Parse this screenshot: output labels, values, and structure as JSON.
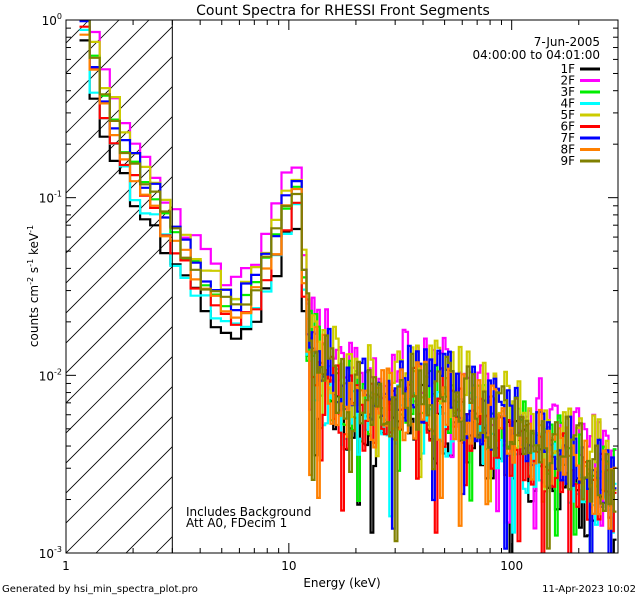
{
  "chart_data": {
    "type": "line",
    "step": true,
    "title": "Count Spectra for RHESSI Front Segments",
    "xlabel": "Energy (keV)",
    "ylabel_parts": [
      "counts cm",
      "-2",
      " s",
      "-1",
      " keV",
      "-1"
    ],
    "xscale": "log",
    "yscale": "log",
    "xlim": [
      1,
      300
    ],
    "ylim": [
      0.001,
      1.0
    ],
    "x_ticks": [
      {
        "value": 1,
        "label": "1"
      },
      {
        "value": 10,
        "label": "10"
      },
      {
        "value": 100,
        "label": "100"
      }
    ],
    "y_ticks": [
      {
        "value": 1,
        "mant": "10",
        "exp": "0"
      },
      {
        "value": 0.1,
        "mant": "10",
        "exp": "-1"
      },
      {
        "value": 0.01,
        "mant": "10",
        "exp": "-2"
      },
      {
        "value": 0.001,
        "mant": "10",
        "exp": "-3"
      }
    ],
    "excluded_region": {
      "from": 1,
      "to": 3,
      "pattern": "diagonal-hatch"
    },
    "legend_location": "top-right",
    "date": "7-Jun-2005",
    "time_range": "04:00:00 to 04:01:00",
    "annotations": [
      "Includes Background",
      "Att A0, FDecim 1"
    ],
    "anchors": [
      [
        1.2,
        1.0
      ],
      [
        1.4,
        0.42
      ],
      [
        1.7,
        0.22
      ],
      [
        2.0,
        0.14
      ],
      [
        2.5,
        0.09
      ],
      [
        3.0,
        0.06
      ],
      [
        3.6,
        0.042
      ],
      [
        4.2,
        0.032
      ],
      [
        5.0,
        0.025
      ],
      [
        6.0,
        0.022
      ],
      [
        7.0,
        0.028
      ],
      [
        8.0,
        0.04
      ],
      [
        9.0,
        0.06
      ],
      [
        10.0,
        0.09
      ],
      [
        10.6,
        0.13
      ],
      [
        11.3,
        0.07
      ],
      [
        12.0,
        0.02
      ],
      [
        14,
        0.011
      ],
      [
        17,
        0.0075
      ],
      [
        20,
        0.0066
      ],
      [
        25,
        0.0066
      ],
      [
        30,
        0.007
      ],
      [
        35,
        0.0075
      ],
      [
        40,
        0.0075
      ],
      [
        50,
        0.0072
      ],
      [
        60,
        0.0065
      ],
      [
        80,
        0.0055
      ],
      [
        100,
        0.0048
      ],
      [
        130,
        0.0042
      ],
      [
        170,
        0.0035
      ],
      [
        220,
        0.0028
      ],
      [
        300,
        0.0022
      ]
    ],
    "series": [
      {
        "name": "1F",
        "color": "#000000",
        "offset": -0.14,
        "seed": 11
      },
      {
        "name": "2F",
        "color": "#ff00ff",
        "offset": 0.17,
        "seed": 23
      },
      {
        "name": "3F",
        "color": "#00ee00",
        "offset": 0.02,
        "seed": 37
      },
      {
        "name": "4F",
        "color": "#00ffff",
        "offset": -0.09,
        "seed": 41
      },
      {
        "name": "5F",
        "color": "#cccc00",
        "offset": 0.13,
        "seed": 53
      },
      {
        "name": "6F",
        "color": "#ff0000",
        "offset": -0.04,
        "seed": 67
      },
      {
        "name": "7F",
        "color": "#0000ff",
        "offset": 0.07,
        "seed": 71
      },
      {
        "name": "8F",
        "color": "#ff8000",
        "offset": -0.01,
        "seed": 83
      },
      {
        "name": "9F",
        "color": "#808000",
        "offset": 0.04,
        "seed": 97
      }
    ]
  },
  "footer": {
    "left": "Generated by hsi_min_spectra_plot.pro",
    "right": "11-Apr-2023 10:02"
  }
}
